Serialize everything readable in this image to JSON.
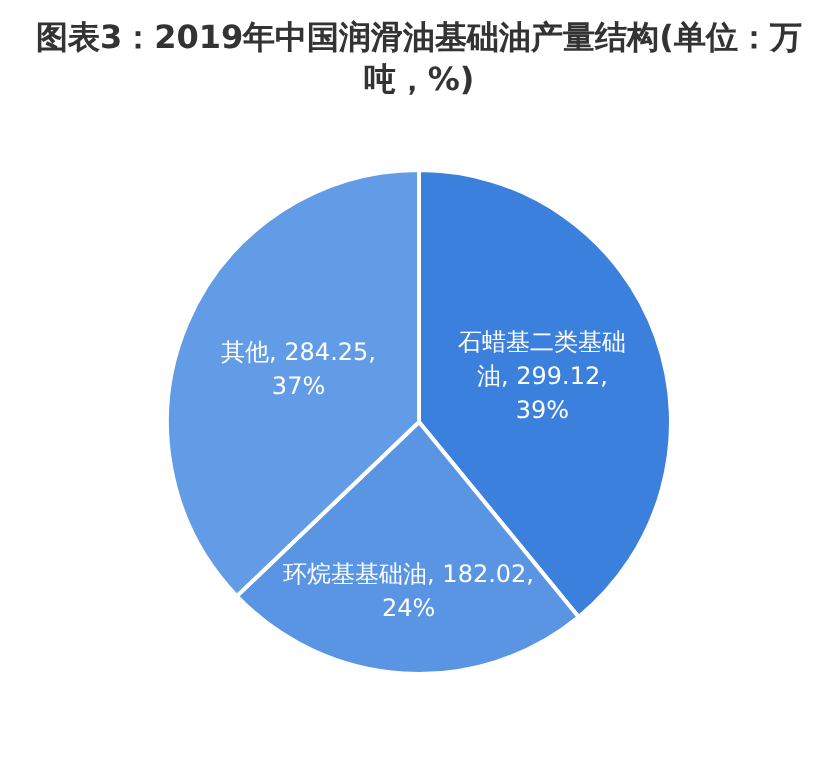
{
  "chart_data": {
    "type": "pie",
    "title": "图表3：2019年中国润滑油基础油产量结构(单位：万吨，%)",
    "categories": [
      "石蜡基二类基础油",
      "环烷基基础油",
      "其他"
    ],
    "values": [
      299.12,
      182.02,
      284.25
    ],
    "value_labels": [
      "299.12, 39%",
      "182.02, 24%",
      "284.25, 37%"
    ],
    "colors": [
      "#3b80dc",
      "#5a95e4",
      "#629ce7"
    ],
    "legend": false
  }
}
